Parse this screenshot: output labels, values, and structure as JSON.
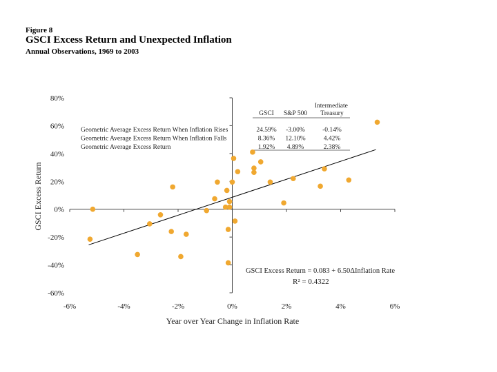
{
  "header": {
    "figure_label": "Figure 8",
    "title": "GSCI Excess Return and Unexpected Inflation",
    "subtitle": "Annual Observations, 1969 to 2003"
  },
  "chart_data": {
    "type": "scatter",
    "xlabel": "Year over Year Change in Inflation Rate",
    "ylabel": "GSCI Excess Return",
    "xlim": [
      -0.06,
      0.06
    ],
    "ylim": [
      -0.6,
      0.8
    ],
    "x_ticks": [
      -0.06,
      -0.04,
      -0.02,
      0,
      0.02,
      0.04,
      0.06
    ],
    "x_tick_labels": [
      "-6%",
      "-4%",
      "-2%",
      "0%",
      "2%",
      "4%",
      "6%"
    ],
    "y_ticks": [
      0.8,
      0.6,
      0.4,
      0.2,
      0,
      -0.2,
      -0.4,
      -0.6
    ],
    "y_tick_labels": [
      "80%",
      "60%",
      "40%",
      "20%",
      "0%",
      "-20%",
      "-40%",
      "-60%"
    ],
    "grid": false,
    "point_color": "#f0a830",
    "points": [
      {
        "x": -0.0525,
        "y": -0.215
      },
      {
        "x": -0.0515,
        "y": 0.0
      },
      {
        "x": -0.035,
        "y": -0.325
      },
      {
        "x": -0.0305,
        "y": -0.105
      },
      {
        "x": -0.0265,
        "y": -0.04
      },
      {
        "x": -0.0225,
        "y": -0.16
      },
      {
        "x": -0.022,
        "y": 0.16
      },
      {
        "x": -0.019,
        "y": -0.34
      },
      {
        "x": -0.017,
        "y": -0.18
      },
      {
        "x": -0.0095,
        "y": -0.01
      },
      {
        "x": -0.0065,
        "y": 0.075
      },
      {
        "x": -0.0055,
        "y": 0.195
      },
      {
        "x": -0.0025,
        "y": 0.015
      },
      {
        "x": -0.002,
        "y": 0.135
      },
      {
        "x": -0.0015,
        "y": -0.145
      },
      {
        "x": -0.0015,
        "y": -0.385
      },
      {
        "x": -0.001,
        "y": 0.015
      },
      {
        "x": -0.001,
        "y": 0.055
      },
      {
        "x": 0.0,
        "y": 0.195
      },
      {
        "x": 0.0005,
        "y": 0.365
      },
      {
        "x": 0.001,
        "y": -0.085
      },
      {
        "x": 0.002,
        "y": 0.27
      },
      {
        "x": 0.0075,
        "y": 0.41
      },
      {
        "x": 0.008,
        "y": 0.265
      },
      {
        "x": 0.008,
        "y": 0.295
      },
      {
        "x": 0.0105,
        "y": 0.34
      },
      {
        "x": 0.014,
        "y": 0.195
      },
      {
        "x": 0.019,
        "y": 0.045
      },
      {
        "x": 0.0225,
        "y": 0.22
      },
      {
        "x": 0.0325,
        "y": 0.165
      },
      {
        "x": 0.034,
        "y": 0.29
      },
      {
        "x": 0.043,
        "y": 0.21
      },
      {
        "x": 0.0535,
        "y": 0.625
      }
    ],
    "trendline": {
      "x": [
        -0.053,
        0.053
      ],
      "y": [
        -0.256,
        0.428
      ]
    },
    "equation": "GSCI Excess Return = 0.083 + 6.50ΔInflation Rate",
    "r_squared": "R² = 0.4322",
    "annotation_table": {
      "col_headers": [
        "GSCI",
        "S&P 500",
        "Intermediate Treasury"
      ],
      "rows": [
        {
          "label": "Geometric Average Excess Return When Inflation Rises",
          "values": [
            "24.59%",
            "-3.00%",
            "-0.14%"
          ]
        },
        {
          "label": "Geometric Average Excess Return When Inflation Falls",
          "values": [
            "8.36%",
            "12.10%",
            "4.42%"
          ]
        },
        {
          "label": "Geometric Average Excess Return",
          "values": [
            "1.92%",
            "4.89%",
            "2.38%"
          ]
        }
      ]
    }
  }
}
